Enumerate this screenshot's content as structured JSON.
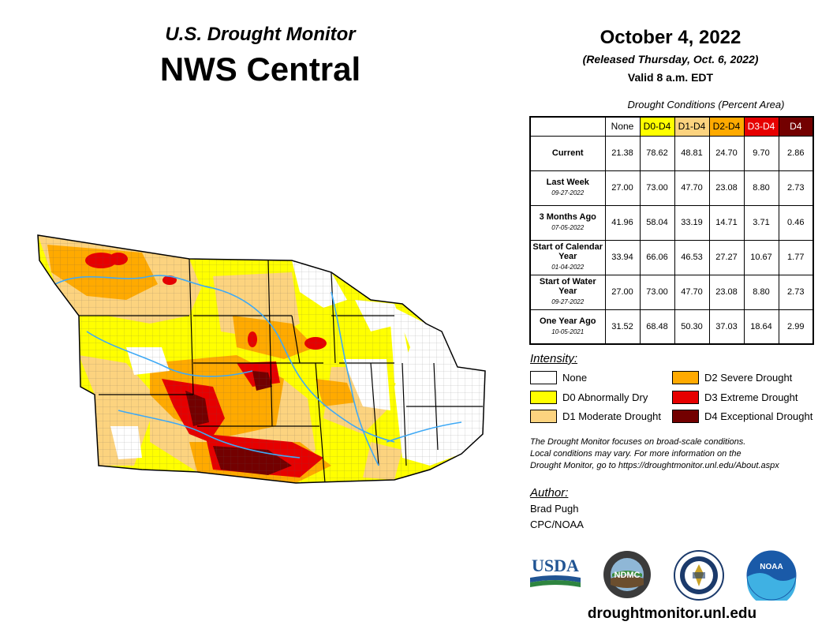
{
  "header": {
    "subtitle": "U.S. Drought Monitor",
    "title": "NWS Central"
  },
  "info": {
    "date": "October 4, 2022",
    "released": "(Released Thursday, Oct. 6, 2022)",
    "valid": "Valid 8 a.m. EDT"
  },
  "table": {
    "title": "Drought Conditions (Percent Area)",
    "columns": [
      {
        "label": "None",
        "color": "#ffffff",
        "text_color": "#000000"
      },
      {
        "label": "D0-D4",
        "color": "#ffff00",
        "text_color": "#000000"
      },
      {
        "label": "D1-D4",
        "color": "#fcd37f",
        "text_color": "#000000"
      },
      {
        "label": "D2-D4",
        "color": "#ffaa00",
        "text_color": "#000000"
      },
      {
        "label": "D3-D4",
        "color": "#e60000",
        "text_color": "#ffffff"
      },
      {
        "label": "D4",
        "color": "#730000",
        "text_color": "#ffffff"
      }
    ],
    "rows": [
      {
        "label": "Current",
        "date": "",
        "values": [
          "21.38",
          "78.62",
          "48.81",
          "24.70",
          "9.70",
          "2.86"
        ]
      },
      {
        "label": "Last Week",
        "date": "09-27-2022",
        "values": [
          "27.00",
          "73.00",
          "47.70",
          "23.08",
          "8.80",
          "2.73"
        ]
      },
      {
        "label": "3 Months Ago",
        "date": "07-05-2022",
        "values": [
          "41.96",
          "58.04",
          "33.19",
          "14.71",
          "3.71",
          "0.46"
        ]
      },
      {
        "label": "Start of Calendar Year",
        "date": "01-04-2022",
        "values": [
          "33.94",
          "66.06",
          "46.53",
          "27.27",
          "10.67",
          "1.77"
        ]
      },
      {
        "label": "Start of Water Year",
        "date": "09-27-2022",
        "values": [
          "27.00",
          "73.00",
          "47.70",
          "23.08",
          "8.80",
          "2.73"
        ]
      },
      {
        "label": "One Year Ago",
        "date": "10-05-2021",
        "values": [
          "31.52",
          "68.48",
          "50.30",
          "37.03",
          "18.64",
          "2.99"
        ]
      }
    ]
  },
  "legend": {
    "title": "Intensity:",
    "items": [
      {
        "label": "None",
        "color": "#ffffff"
      },
      {
        "label": "D0 Abnormally Dry",
        "color": "#ffff00"
      },
      {
        "label": "D1 Moderate Drought",
        "color": "#fcd37f"
      },
      {
        "label": "D2 Severe Drought",
        "color": "#ffaa00"
      },
      {
        "label": "D3 Extreme Drought",
        "color": "#e60000"
      },
      {
        "label": "D4 Exceptional Drought",
        "color": "#730000"
      }
    ]
  },
  "note": {
    "line1": "The Drought Monitor focuses on broad-scale conditions.",
    "line2": "Local conditions may vary. For more information on the",
    "line3": "Drought Monitor, go to https://droughtmonitor.unl.edu/About.aspx"
  },
  "author": {
    "title": "Author:",
    "name": "Brad Pugh",
    "org": "CPC/NOAA"
  },
  "logos": {
    "usda": "USDA",
    "ndmc": "NDMC",
    "noaa": "NOAA"
  },
  "footer": {
    "url": "droughtmonitor.unl.edu"
  }
}
